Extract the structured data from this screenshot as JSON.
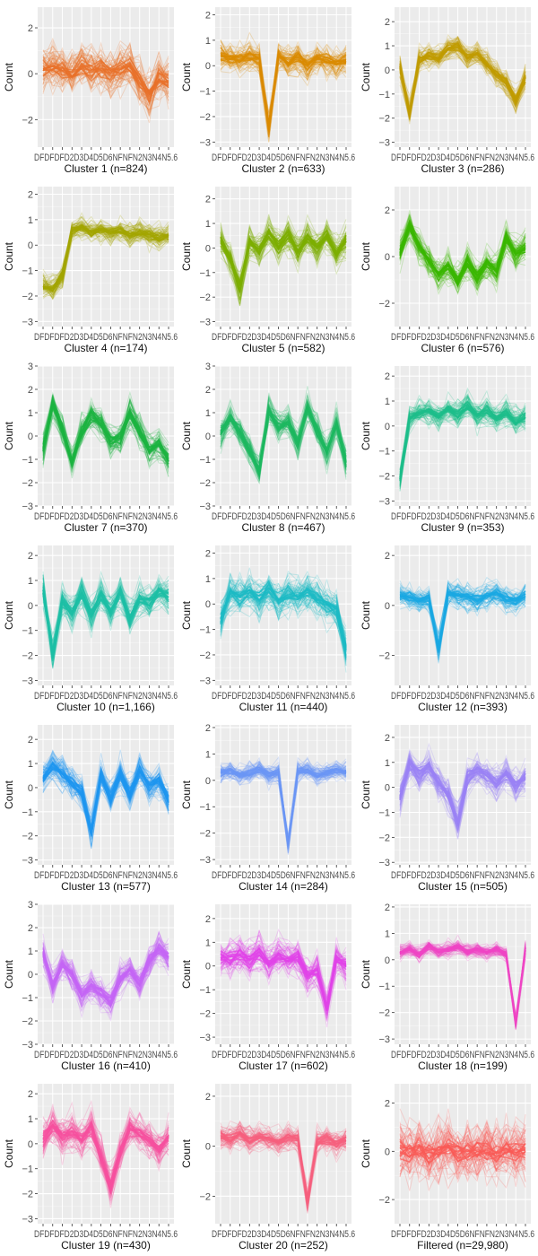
{
  "figure": {
    "ylabel": "Count",
    "tick_label_text": "DFDFDFD2D3D4D5D6NFNFN2N3N4N5.6"
  },
  "chart_data": [
    {
      "type": "line",
      "title": "Cluster 1 (n=824)",
      "ylabel": "Count",
      "yticks": [
        -2,
        0,
        2
      ],
      "ylim": [
        -3.2,
        2.9
      ],
      "color": "#E8702A",
      "center": [
        0.2,
        0.3,
        0.1,
        0.0,
        0.4,
        0.1,
        0.3,
        0.0,
        0.2,
        0.3,
        -0.4,
        -1.0,
        -0.1,
        -0.3
      ],
      "spread": 1.3
    },
    {
      "type": "line",
      "title": "Cluster 2 (n=633)",
      "ylabel": "Count",
      "yticks": [
        -3,
        -2,
        -1,
        0,
        1,
        2
      ],
      "ylim": [
        -3.2,
        2.3
      ],
      "color": "#DA8A00",
      "center": [
        0.4,
        0.3,
        0.2,
        0.4,
        0.3,
        -2.4,
        0.4,
        0.1,
        0.3,
        0.0,
        0.3,
        0.2,
        0.1,
        0.2
      ],
      "spread": 0.8
    },
    {
      "type": "line",
      "title": "Cluster 3 (n=286)",
      "ylabel": "Count",
      "yticks": [
        -3,
        -2,
        -1,
        0,
        1,
        2
      ],
      "ylim": [
        -3.2,
        2.6
      ],
      "color": "#C09B00",
      "center": [
        0.1,
        -1.8,
        0.4,
        0.6,
        0.5,
        0.9,
        1.0,
        0.5,
        0.7,
        0.3,
        -0.2,
        -0.5,
        -1.3,
        -0.3
      ],
      "spread": 0.7
    },
    {
      "type": "line",
      "title": "Cluster 4 (n=174)",
      "ylabel": "Count",
      "yticks": [
        -3,
        -2,
        -1,
        0,
        1,
        2
      ],
      "ylim": [
        -3.2,
        2.3
      ],
      "color": "#A3A500",
      "center": [
        -1.6,
        -1.7,
        -1.2,
        0.6,
        0.7,
        0.5,
        0.6,
        0.5,
        0.6,
        0.4,
        0.5,
        0.4,
        0.3,
        0.4
      ],
      "spread": 0.6
    },
    {
      "type": "line",
      "title": "Cluster 5 (n=582)",
      "ylabel": "Count",
      "yticks": [
        -3,
        -2,
        -1,
        0,
        1,
        2
      ],
      "ylim": [
        -3.2,
        2.5
      ],
      "color": "#7CAE00",
      "center": [
        0.3,
        -0.4,
        -1.6,
        0.3,
        -0.2,
        0.6,
        0.1,
        0.5,
        -0.1,
        0.4,
        0.0,
        0.5,
        -0.2,
        0.3
      ],
      "spread": 0.9
    },
    {
      "type": "line",
      "title": "Cluster 6 (n=576)",
      "ylabel": "Count",
      "yticks": [
        -2,
        0,
        2
      ],
      "ylim": [
        -3.0,
        3.0
      ],
      "color": "#39B600",
      "center": [
        0.2,
        1.3,
        0.4,
        -0.2,
        -0.8,
        -0.4,
        -1.0,
        -0.2,
        -0.9,
        -0.3,
        -0.6,
        0.8,
        0.1,
        0.4
      ],
      "spread": 0.9
    },
    {
      "type": "line",
      "title": "Cluster 7 (n=370)",
      "ylabel": "Count",
      "yticks": [
        -3,
        -2,
        -1,
        0,
        1,
        2,
        3
      ],
      "ylim": [
        -3.0,
        3.0
      ],
      "color": "#1BB340",
      "center": [
        -0.5,
        1.4,
        0.3,
        -1.1,
        0.2,
        0.9,
        0.6,
        -0.2,
        -0.1,
        1.0,
        0.2,
        -0.6,
        -0.3,
        -1.0
      ],
      "spread": 0.9
    },
    {
      "type": "line",
      "title": "Cluster 8 (n=467)",
      "ylabel": "Count",
      "yticks": [
        -3,
        -2,
        -1,
        0,
        1,
        2,
        3
      ],
      "ylim": [
        -3.0,
        3.0
      ],
      "color": "#1DB860",
      "center": [
        0.1,
        0.8,
        0.2,
        -0.6,
        -1.5,
        1.1,
        0.4,
        0.6,
        -0.3,
        1.2,
        0.3,
        -0.7,
        0.5,
        -1.2
      ],
      "spread": 0.9
    },
    {
      "type": "line",
      "title": "Cluster 9 (n=353)",
      "ylabel": "Count",
      "yticks": [
        -3,
        -2,
        -1,
        0,
        1,
        2
      ],
      "ylim": [
        -3.2,
        2.4
      ],
      "color": "#1DBD8A",
      "center": [
        -2.1,
        0.3,
        0.5,
        0.6,
        0.4,
        0.7,
        0.5,
        0.8,
        0.4,
        0.6,
        0.3,
        0.5,
        0.2,
        0.4
      ],
      "spread": 0.7
    },
    {
      "type": "line",
      "title": "Cluster 10 (n=1,166)",
      "ylabel": "Count",
      "yticks": [
        -3,
        -2,
        -1,
        0,
        1,
        2
      ],
      "ylim": [
        -3.2,
        2.4
      ],
      "color": "#1DBFA5",
      "center": [
        0.7,
        -2.0,
        0.2,
        -0.3,
        0.5,
        -0.4,
        0.4,
        -0.2,
        0.5,
        -0.5,
        0.3,
        0.1,
        0.6,
        0.4
      ],
      "spread": 0.9
    },
    {
      "type": "line",
      "title": "Cluster 11 (n=440)",
      "ylabel": "Count",
      "yticks": [
        -3,
        -2,
        -1,
        0,
        1,
        2
      ],
      "ylim": [
        -3.2,
        2.3
      ],
      "color": "#1DBBC5",
      "center": [
        -0.6,
        0.4,
        0.3,
        0.5,
        0.2,
        0.6,
        0.1,
        0.4,
        0.3,
        0.5,
        0.2,
        -0.1,
        -0.2,
        -1.8
      ],
      "spread": 1.0
    },
    {
      "type": "line",
      "title": "Cluster 12 (n=393)",
      "ylabel": "Count",
      "yticks": [
        -2,
        0,
        2
      ],
      "ylim": [
        -3.2,
        2.4
      ],
      "color": "#1AA8E3",
      "center": [
        0.4,
        0.3,
        0.2,
        0.3,
        -1.7,
        0.5,
        0.4,
        0.3,
        0.2,
        0.4,
        0.5,
        0.3,
        0.2,
        0.4
      ],
      "spread": 0.7
    },
    {
      "type": "line",
      "title": "Cluster 13 (n=577)",
      "ylabel": "Count",
      "yticks": [
        -3,
        -2,
        -1,
        0,
        1,
        2
      ],
      "ylim": [
        -3.2,
        2.6
      ],
      "color": "#1E96F0",
      "center": [
        0.4,
        0.9,
        0.6,
        0.2,
        -0.2,
        -1.8,
        0.5,
        -0.4,
        0.6,
        -0.3,
        0.7,
        0.1,
        0.3,
        -0.5
      ],
      "spread": 0.9
    },
    {
      "type": "line",
      "title": "Cluster 14 (n=284)",
      "ylabel": "Count",
      "yticks": [
        -3,
        -2,
        -1,
        0,
        1,
        2
      ],
      "ylim": [
        -3.2,
        2.1
      ],
      "color": "#6B96F5",
      "center": [
        0.3,
        0.4,
        0.2,
        0.3,
        0.4,
        0.2,
        0.3,
        -2.4,
        0.3,
        0.4,
        0.2,
        0.3,
        0.4,
        0.3
      ],
      "spread": 0.5
    },
    {
      "type": "line",
      "title": "Cluster 15 (n=505)",
      "ylabel": "Count",
      "yticks": [
        -3,
        -2,
        -1,
        0,
        1,
        2
      ],
      "ylim": [
        -3.1,
        2.5
      ],
      "color": "#9A82F5",
      "center": [
        -0.4,
        0.9,
        0.5,
        0.8,
        0.2,
        -0.3,
        -1.4,
        0.4,
        0.7,
        0.5,
        0.2,
        0.6,
        0.0,
        0.4
      ],
      "spread": 0.9
    },
    {
      "type": "line",
      "title": "Cluster 16 (n=410)",
      "ylabel": "Count",
      "yticks": [
        -3,
        -2,
        -1,
        0,
        1,
        2,
        3
      ],
      "ylim": [
        -3.0,
        3.0
      ],
      "color": "#C465F5",
      "center": [
        0.9,
        -0.4,
        0.5,
        0.0,
        -0.9,
        -0.5,
        -0.8,
        -1.2,
        -0.2,
        0.2,
        -0.4,
        0.6,
        1.1,
        0.7
      ],
      "spread": 0.9
    },
    {
      "type": "line",
      "title": "Cluster 17 (n=602)",
      "ylabel": "Count",
      "yticks": [
        -3,
        -2,
        -1,
        0,
        1,
        2
      ],
      "ylim": [
        -3.3,
        2.6
      ],
      "color": "#E143E8",
      "center": [
        0.4,
        0.3,
        0.5,
        0.2,
        0.6,
        0.1,
        0.5,
        0.3,
        0.4,
        -0.4,
        -0.2,
        -1.8,
        0.3,
        0.0
      ],
      "spread": 1.0
    },
    {
      "type": "line",
      "title": "Cluster 18 (n=199)",
      "ylabel": "Count",
      "yticks": [
        -3,
        -2,
        -1,
        0,
        1,
        2
      ],
      "ylim": [
        -3.2,
        2.1
      ],
      "color": "#EF45C5",
      "center": [
        0.3,
        0.4,
        0.2,
        0.5,
        0.3,
        0.4,
        0.5,
        0.3,
        0.4,
        0.3,
        0.4,
        0.2,
        -2.4,
        0.4
      ],
      "spread": 0.4
    },
    {
      "type": "line",
      "title": "Cluster 19 (n=430)",
      "ylabel": "Count",
      "yticks": [
        -3,
        -2,
        -1,
        0,
        1,
        2
      ],
      "ylim": [
        -3.2,
        2.4
      ],
      "color": "#F6509E",
      "center": [
        0.2,
        0.7,
        0.3,
        0.5,
        0.2,
        0.6,
        -0.5,
        -1.7,
        -0.3,
        0.6,
        0.4,
        0.2,
        -0.2,
        0.3
      ],
      "spread": 1.0
    },
    {
      "type": "line",
      "title": "Cluster 20 (n=252)",
      "ylabel": "Count",
      "yticks": [
        -2,
        0,
        2
      ],
      "ylim": [
        -3.1,
        2.5
      ],
      "color": "#F6607E",
      "center": [
        0.4,
        0.3,
        0.5,
        0.2,
        0.4,
        0.3,
        0.2,
        0.4,
        0.3,
        -2.2,
        0.2,
        0.3,
        0.1,
        0.3
      ],
      "spread": 0.7
    },
    {
      "type": "line",
      "title": "Filtered (n=29,980)",
      "ylabel": "Count",
      "yticks": [
        -2,
        0,
        2
      ],
      "ylim": [
        -3.0,
        2.8
      ],
      "color": "#FA5A55",
      "center": [
        0.1,
        0.0,
        0.1,
        -0.1,
        0.0,
        0.1,
        -0.1,
        0.0,
        0.1,
        0.0,
        -0.1,
        0.1,
        0.0,
        0.1
      ],
      "spread": 1.6
    }
  ]
}
